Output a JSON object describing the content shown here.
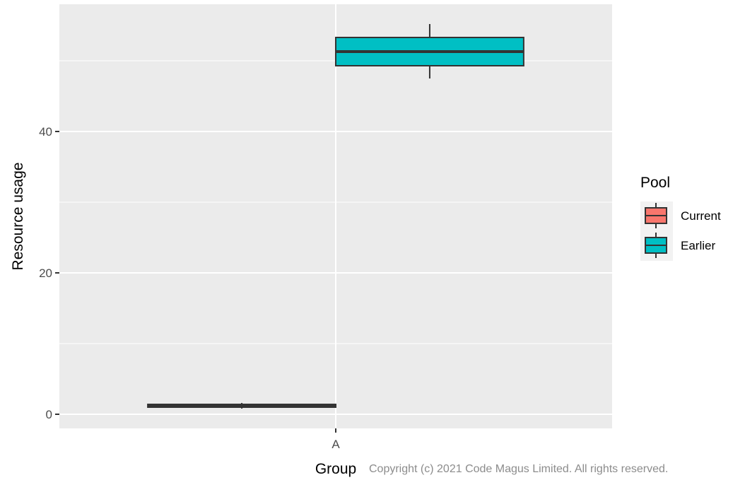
{
  "chart_data": {
    "type": "boxplot",
    "xlabel": "Group",
    "ylabel": "Resource usage",
    "categories": [
      "A"
    ],
    "y_ticks": [
      0,
      20,
      40
    ],
    "ylim": [
      -2,
      58
    ],
    "grid": true,
    "legend": {
      "title": "Pool",
      "placement": "right",
      "entries": [
        "Current",
        "Earlier"
      ]
    },
    "series": [
      {
        "name": "Current",
        "color": "#F8766D",
        "boxes": [
          {
            "category": "A",
            "min": 0.8,
            "q1": 1.0,
            "median": 1.2,
            "q3": 1.4,
            "max": 1.6
          }
        ]
      },
      {
        "name": "Earlier",
        "color": "#00BFC4",
        "boxes": [
          {
            "category": "A",
            "min": 47.5,
            "q1": 49.3,
            "median": 51.3,
            "q3": 53.3,
            "max": 55.2
          }
        ]
      }
    ]
  },
  "footer": {
    "copyright": "Copyright (c) 2021 Code Magus Limited. All rights reserved."
  }
}
